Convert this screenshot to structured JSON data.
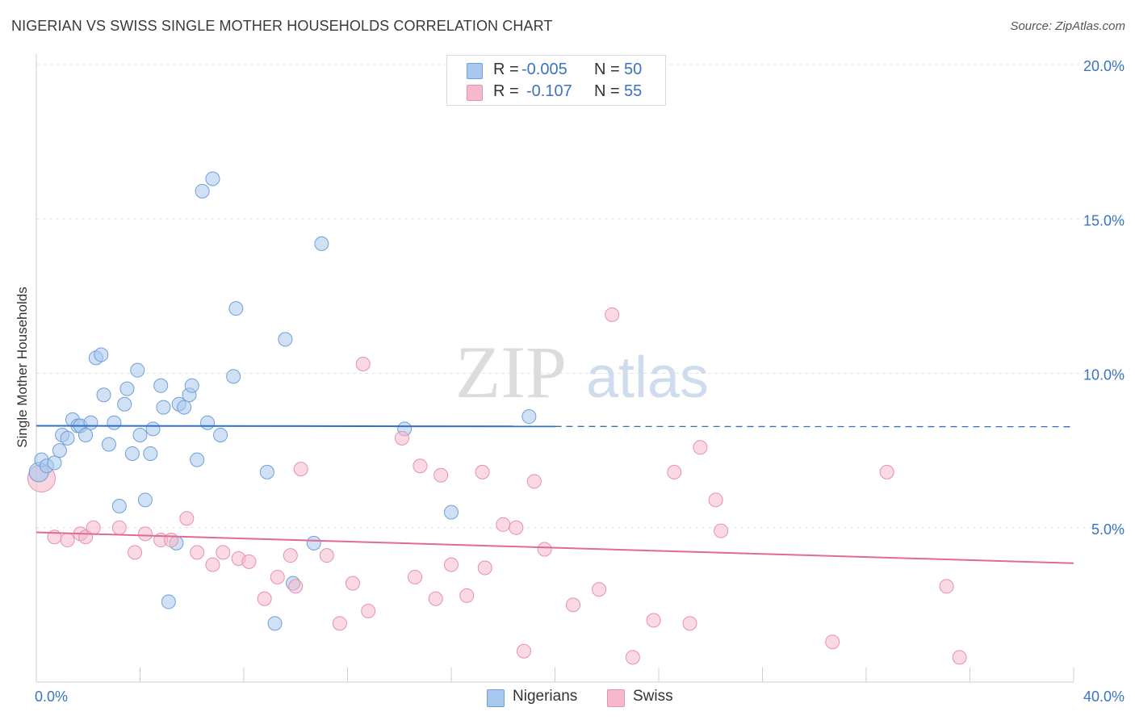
{
  "header": {
    "title": "NIGERIAN VS SWISS SINGLE MOTHER HOUSEHOLDS CORRELATION CHART",
    "source": "Source: ZipAtlas.com"
  },
  "watermark": {
    "zip": "ZIP",
    "atlas": "atlas"
  },
  "stats": {
    "rows": [
      {
        "r_label": "R =",
        "r_value": "-0.005",
        "n_label": "N =",
        "n_value": "50",
        "color": "#a9c8ef"
      },
      {
        "r_label": "R =",
        "r_value": "-0.107",
        "n_label": "N =",
        "n_value": "55",
        "color": "#f6b9cb"
      }
    ]
  },
  "legend": {
    "items": [
      {
        "label": "Nigerians",
        "color": "#a9c8ef"
      },
      {
        "label": "Swiss",
        "color": "#f6b9cb"
      }
    ]
  },
  "chart_data": {
    "type": "scatter",
    "title": "NIGERIAN VS SWISS SINGLE MOTHER HOUSEHOLDS CORRELATION CHART",
    "xlabel": "",
    "ylabel": "Single Mother Households",
    "xlim": [
      0,
      40
    ],
    "ylim": [
      0,
      20
    ],
    "x_tick_labels": [
      "0.0%",
      "40.0%"
    ],
    "y_ticks": [
      5,
      10,
      15,
      20
    ],
    "y_tick_labels": [
      "5.0%",
      "10.0%",
      "15.0%",
      "20.0%"
    ],
    "grid": true,
    "legend_position": "bottom-center",
    "colors": {
      "nigerians_fill": "#a9c8ef",
      "nigerians_line": "#2f6fc7",
      "swiss_fill": "#f6b9cb",
      "swiss_line": "#e06b96",
      "axis_text": "#3a73c4"
    },
    "series": [
      {
        "name": "Nigerians",
        "trend": {
          "x": [
            0,
            20
          ],
          "y": [
            8.3,
            8.28
          ],
          "dashed_to_x": 40,
          "dashed_y": 8.27
        },
        "points": [
          [
            0.2,
            7.2
          ],
          [
            0.4,
            7.0
          ],
          [
            0.7,
            7.1
          ],
          [
            0.9,
            7.5
          ],
          [
            1.0,
            8.0
          ],
          [
            1.2,
            7.9
          ],
          [
            1.4,
            8.5
          ],
          [
            1.6,
            8.3
          ],
          [
            1.7,
            8.3
          ],
          [
            1.9,
            8.0
          ],
          [
            2.1,
            8.4
          ],
          [
            2.3,
            10.5
          ],
          [
            2.5,
            10.6
          ],
          [
            2.6,
            9.3
          ],
          [
            2.8,
            7.7
          ],
          [
            3.0,
            8.4
          ],
          [
            3.2,
            5.7
          ],
          [
            3.4,
            9.0
          ],
          [
            3.5,
            9.5
          ],
          [
            3.7,
            7.4
          ],
          [
            3.9,
            10.1
          ],
          [
            4.0,
            8.0
          ],
          [
            4.2,
            5.9
          ],
          [
            4.4,
            7.4
          ],
          [
            4.5,
            8.2
          ],
          [
            4.8,
            9.6
          ],
          [
            4.9,
            8.9
          ],
          [
            5.1,
            2.6
          ],
          [
            5.4,
            4.5
          ],
          [
            5.5,
            9.0
          ],
          [
            5.7,
            8.9
          ],
          [
            5.9,
            9.3
          ],
          [
            6.0,
            9.6
          ],
          [
            6.2,
            7.2
          ],
          [
            6.4,
            15.9
          ],
          [
            6.6,
            8.4
          ],
          [
            6.8,
            16.3
          ],
          [
            7.1,
            8.0
          ],
          [
            7.6,
            9.9
          ],
          [
            7.7,
            12.1
          ],
          [
            8.9,
            6.8
          ],
          [
            9.2,
            1.9
          ],
          [
            9.6,
            11.1
          ],
          [
            9.9,
            3.2
          ],
          [
            10.7,
            4.5
          ],
          [
            11.0,
            14.2
          ],
          [
            14.2,
            8.2
          ],
          [
            16.0,
            5.5
          ],
          [
            19.0,
            8.6
          ],
          [
            0.1,
            6.8
          ]
        ]
      },
      {
        "name": "Swiss",
        "trend": {
          "x": [
            0,
            40
          ],
          "y": [
            4.85,
            3.85
          ]
        },
        "points": [
          [
            0.2,
            6.6
          ],
          [
            0.7,
            4.7
          ],
          [
            1.2,
            4.6
          ],
          [
            1.7,
            4.8
          ],
          [
            1.9,
            4.7
          ],
          [
            2.2,
            5.0
          ],
          [
            3.2,
            5.0
          ],
          [
            3.8,
            4.2
          ],
          [
            4.2,
            4.8
          ],
          [
            4.8,
            4.6
          ],
          [
            5.2,
            4.6
          ],
          [
            5.8,
            5.3
          ],
          [
            6.2,
            4.2
          ],
          [
            6.8,
            3.8
          ],
          [
            7.2,
            4.2
          ],
          [
            7.8,
            4.0
          ],
          [
            8.2,
            3.9
          ],
          [
            8.8,
            2.7
          ],
          [
            9.3,
            3.4
          ],
          [
            9.8,
            4.1
          ],
          [
            10.0,
            3.1
          ],
          [
            10.2,
            6.9
          ],
          [
            11.2,
            4.1
          ],
          [
            11.7,
            1.9
          ],
          [
            12.2,
            3.2
          ],
          [
            12.6,
            10.3
          ],
          [
            12.8,
            2.3
          ],
          [
            14.1,
            7.9
          ],
          [
            14.6,
            3.4
          ],
          [
            14.8,
            7.0
          ],
          [
            15.4,
            2.7
          ],
          [
            15.6,
            6.7
          ],
          [
            16.0,
            3.8
          ],
          [
            16.6,
            2.8
          ],
          [
            17.2,
            6.8
          ],
          [
            17.3,
            3.7
          ],
          [
            18.0,
            5.1
          ],
          [
            18.5,
            5.0
          ],
          [
            18.8,
            1.0
          ],
          [
            19.2,
            6.5
          ],
          [
            19.6,
            4.3
          ],
          [
            20.7,
            2.5
          ],
          [
            21.7,
            3.0
          ],
          [
            22.2,
            11.9
          ],
          [
            23.0,
            0.8
          ],
          [
            23.8,
            2.0
          ],
          [
            24.6,
            6.8
          ],
          [
            25.2,
            1.9
          ],
          [
            25.6,
            7.6
          ],
          [
            26.2,
            5.9
          ],
          [
            26.4,
            4.9
          ],
          [
            30.7,
            1.3
          ],
          [
            32.8,
            6.8
          ],
          [
            35.1,
            3.1
          ],
          [
            35.6,
            0.8
          ]
        ]
      }
    ]
  }
}
